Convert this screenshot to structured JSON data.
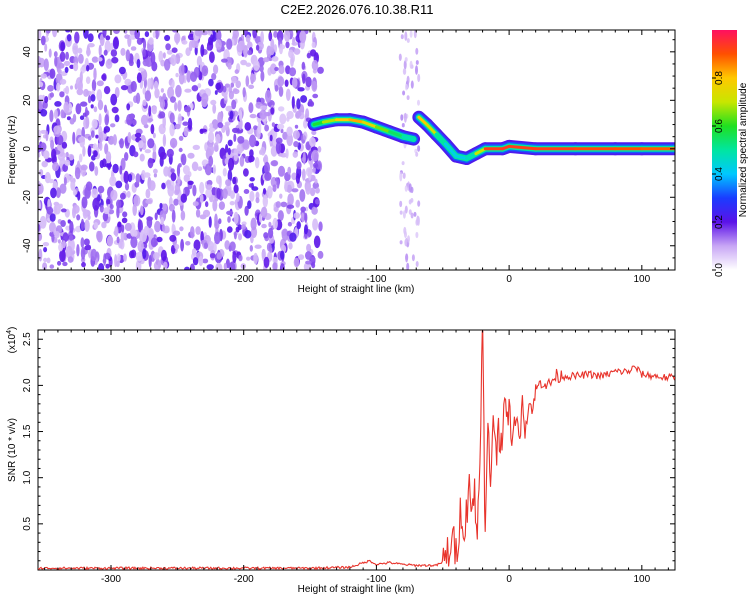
{
  "title": "C2E2.2026.076.10.38.R11",
  "chart_data": [
    {
      "type": "heatmap",
      "xlabel": "Height of straight line (km)",
      "ylabel": "Frequency (Hz)",
      "xlim": [
        -355,
        125
      ],
      "ylim": [
        -50,
        49
      ],
      "xticks": [
        -300,
        -200,
        -100,
        0,
        100
      ],
      "yticks": [
        -40,
        -20,
        0,
        20,
        40
      ],
      "colorbar": {
        "label": "Normalized spectral amplitude",
        "range": [
          0,
          1
        ],
        "ticks": [
          0.0,
          0.2,
          0.4,
          0.6,
          0.8
        ],
        "tick_labels": [
          "0.0",
          "0.2",
          "0.4",
          "0.6",
          "0.8"
        ]
      },
      "noise_region": {
        "x": [
          -355,
          -142
        ],
        "y": [
          -50,
          49
        ],
        "amplitude": [
          0.05,
          0.2
        ]
      },
      "ridge": [
        {
          "x": -147,
          "y": 10,
          "amp": 0.55
        },
        {
          "x": -140,
          "y": 11,
          "amp": 0.62
        },
        {
          "x": -130,
          "y": 12,
          "amp": 0.75
        },
        {
          "x": -120,
          "y": 12,
          "amp": 0.85
        },
        {
          "x": -110,
          "y": 11,
          "amp": 0.8
        },
        {
          "x": -100,
          "y": 9,
          "amp": 0.7
        },
        {
          "x": -90,
          "y": 7,
          "amp": 0.6
        },
        {
          "x": -80,
          "y": 5,
          "amp": 0.5
        },
        {
          "x": -72,
          "y": 4,
          "amp": 0.45
        },
        {
          "x": -68,
          "y": 13,
          "amp": 0.7
        },
        {
          "x": -62,
          "y": 10,
          "amp": 0.9
        },
        {
          "x": -55,
          "y": 6,
          "amp": 0.55
        },
        {
          "x": -48,
          "y": 2,
          "amp": 0.45
        },
        {
          "x": -40,
          "y": -3,
          "amp": 0.4
        },
        {
          "x": -32,
          "y": -4,
          "amp": 0.45
        },
        {
          "x": -25,
          "y": -2,
          "amp": 0.5
        },
        {
          "x": -18,
          "y": 0,
          "amp": 0.9
        },
        {
          "x": -5,
          "y": 0,
          "amp": 0.95
        },
        {
          "x": 0,
          "y": 1,
          "amp": 0.92
        },
        {
          "x": 20,
          "y": 0,
          "amp": 0.93
        },
        {
          "x": 50,
          "y": 0,
          "amp": 0.92
        },
        {
          "x": 80,
          "y": 0,
          "amp": 0.9
        },
        {
          "x": 100,
          "y": 0,
          "amp": 0.9
        },
        {
          "x": 125,
          "y": 0,
          "amp": 0.88
        }
      ]
    },
    {
      "type": "line",
      "xlabel": "Height of straight line (km)",
      "ylabel": "SNR (10 * v/v)",
      "yscale_label": "(x10",
      "yscale_exponent": "4",
      "yscale_close": ")",
      "xlim": [
        -355,
        125
      ],
      "ylim": [
        0,
        2.6
      ],
      "xticks": [
        -300,
        -200,
        -100,
        0,
        100
      ],
      "yticks": [
        0.5,
        1.0,
        1.5,
        2.0,
        2.5
      ],
      "series": [
        {
          "color": "#e8342c",
          "x": [
            -355,
            -300,
            -200,
            -150,
            -120,
            -105,
            -100,
            -90,
            -80,
            -70,
            -62,
            -55,
            -48,
            -44,
            -40,
            -36,
            -33,
            -30,
            -28,
            -26,
            -24,
            -22,
            -20,
            -19,
            -18,
            -16,
            -14,
            -12,
            -10,
            -8,
            -6,
            -4,
            -2,
            0,
            2,
            4,
            6,
            8,
            10,
            12,
            15,
            18,
            20,
            25,
            30,
            35,
            40,
            50,
            60,
            70,
            80,
            90,
            95,
            100,
            110,
            120,
            125
          ],
          "y": [
            0.02,
            0.02,
            0.02,
            0.02,
            0.03,
            0.1,
            0.06,
            0.08,
            0.06,
            0.05,
            0.05,
            0.05,
            0.1,
            0.3,
            0.2,
            0.7,
            0.4,
            1.1,
            0.5,
            0.9,
            0.3,
            1.4,
            2.6,
            1.5,
            0.3,
            1.5,
            0.9,
            1.8,
            1.2,
            1.6,
            1.4,
            1.8,
            1.5,
            1.9,
            1.3,
            1.6,
            1.7,
            1.35,
            1.9,
            1.5,
            1.8,
            1.75,
            1.95,
            2.05,
            2.0,
            2.1,
            2.1,
            2.1,
            2.12,
            2.1,
            2.15,
            2.15,
            2.2,
            2.12,
            2.1,
            2.08,
            2.1
          ]
        }
      ]
    }
  ]
}
